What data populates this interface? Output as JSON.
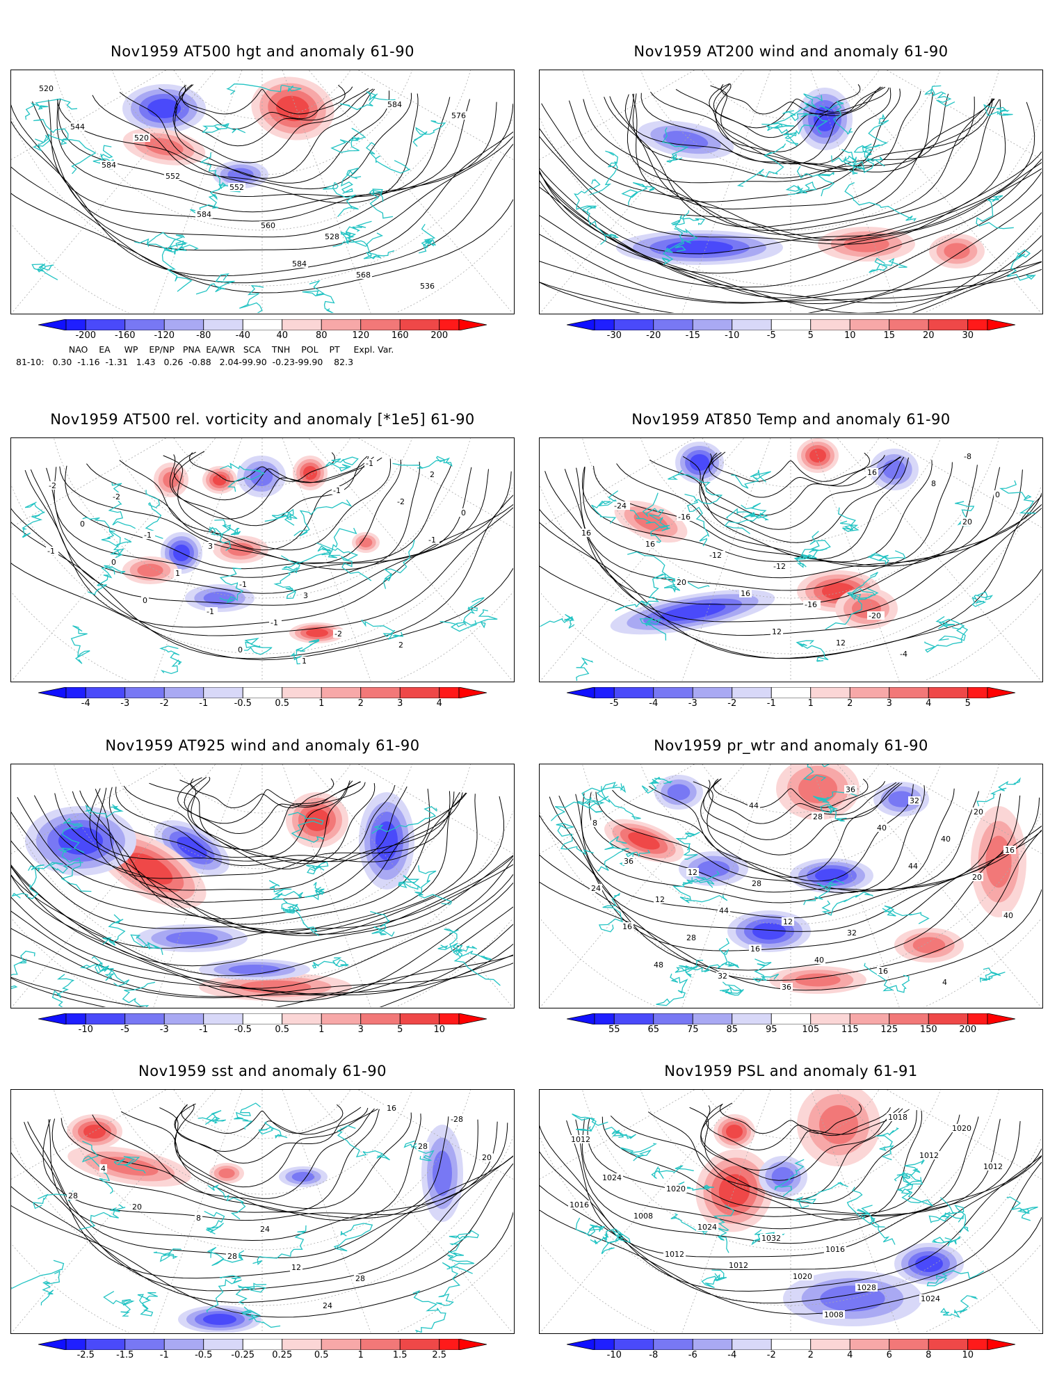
{
  "panels": [
    {
      "id": "p1",
      "title": "Nov1959 AT500 hgt and anomaly 61-90",
      "colorbar": [
        "-200",
        "-160",
        "-120",
        "-80",
        "-40",
        "40",
        "80",
        "120",
        "160",
        "200"
      ],
      "contour_labels": [
        "520",
        "520",
        "552",
        "528",
        "536",
        "544",
        "552",
        "560",
        "568",
        "576",
        "584",
        "584",
        "584",
        "584"
      ]
    },
    {
      "id": "p2",
      "title": "Nov1959 AT200 wind and anomaly 61-90",
      "colorbar": [
        "-30",
        "-20",
        "-15",
        "-10",
        "-5",
        "5",
        "10",
        "15",
        "20",
        "30"
      ],
      "contour_labels": []
    },
    {
      "id": "p3",
      "title": "Nov1959 AT500 rel. vorticity and anomaly [*1e5] 61-90",
      "colorbar": [
        "-4",
        "-3",
        "-2",
        "-1",
        "-0.5",
        "0.5",
        "1",
        "2",
        "3",
        "4"
      ],
      "contour_labels": [
        "-2",
        "3",
        "3",
        "2",
        "-2",
        "-1",
        "-1",
        "-2",
        "2",
        "0",
        "1",
        "-1",
        "-1",
        "0",
        "0",
        "-1",
        "1",
        "-2",
        "-1",
        "0",
        "0",
        "-1",
        "-1"
      ]
    },
    {
      "id": "p4",
      "title": "Nov1959 AT850 Temp and anomaly 61-90",
      "colorbar": [
        "-5",
        "-4",
        "-3",
        "-2",
        "-1",
        "1",
        "2",
        "3",
        "4",
        "5"
      ],
      "contour_labels": [
        "-16",
        "-12",
        "-20",
        "-8",
        "-24",
        "-12",
        "-16",
        "-4",
        "0",
        "16",
        "16",
        "12",
        "8",
        "16",
        "20",
        "12",
        "16",
        "20"
      ]
    },
    {
      "id": "p5",
      "title": "Nov1959 AT925 wind and anomaly 61-90",
      "colorbar": [
        "-10",
        "-5",
        "-3",
        "-1",
        "-0.5",
        "0.5",
        "1",
        "3",
        "5",
        "10"
      ],
      "contour_labels": []
    },
    {
      "id": "p6",
      "title": "Nov1959 pr_wtr and anomaly 61-90",
      "colorbar": [
        "55",
        "65",
        "75",
        "85",
        "95",
        "105",
        "115",
        "125",
        "150",
        "200"
      ],
      "contour_labels": [
        "28",
        "32",
        "4",
        "8",
        "12",
        "12",
        "16",
        "20",
        "36",
        "44",
        "40",
        "32",
        "16",
        "12",
        "16",
        "36",
        "40",
        "24",
        "28",
        "36",
        "40",
        "20",
        "16",
        "32",
        "28",
        "44",
        "40",
        "48",
        "44"
      ]
    },
    {
      "id": "p7",
      "title": "Nov1959 sst and anomaly 61-90",
      "colorbar": [
        "-2.5",
        "-1.5",
        "-1",
        "-0.5",
        "-0.25",
        "0.25",
        "0.5",
        "1",
        "1.5",
        "2.5"
      ],
      "contour_labels": [
        "24",
        "28",
        "-28",
        "4",
        "8",
        "12",
        "16",
        "20",
        "20",
        "28",
        "24",
        "28",
        "28"
      ]
    },
    {
      "id": "p8",
      "title": "Nov1959 PSL and anomaly 61-91",
      "colorbar": [
        "-10",
        "-8",
        "-6",
        "-4",
        "-2",
        "2",
        "4",
        "6",
        "8",
        "10"
      ],
      "contour_labels": [
        "1016",
        "1024",
        "1012",
        "1020",
        "1032",
        "1028",
        "1020",
        "1024",
        "1024",
        "1020",
        "1018",
        "1012",
        "1008",
        "1012",
        "1008",
        "1012",
        "1016",
        "1012"
      ]
    }
  ],
  "teleconnection": {
    "header": "      NAO    EA     WP    EP/NP   PNA  EA/WR   SCA    TNH    POL    PT     Expl. Var.",
    "row": "81-10:   0.30  -1.16  -1.31   1.43   0.26  -0.88   2.04-99.90  -0.23-99.90    82.3"
  },
  "colors": {
    "coast": "#22c3c3",
    "blue_scale": [
      "#1f1fff",
      "#4a4afa",
      "#7878f4",
      "#a9a9f3",
      "#d8d8f8"
    ],
    "red_scale": [
      "#fbd6d6",
      "#f7a8a8",
      "#f27878",
      "#ef4848",
      "#ff1a1a"
    ]
  }
}
